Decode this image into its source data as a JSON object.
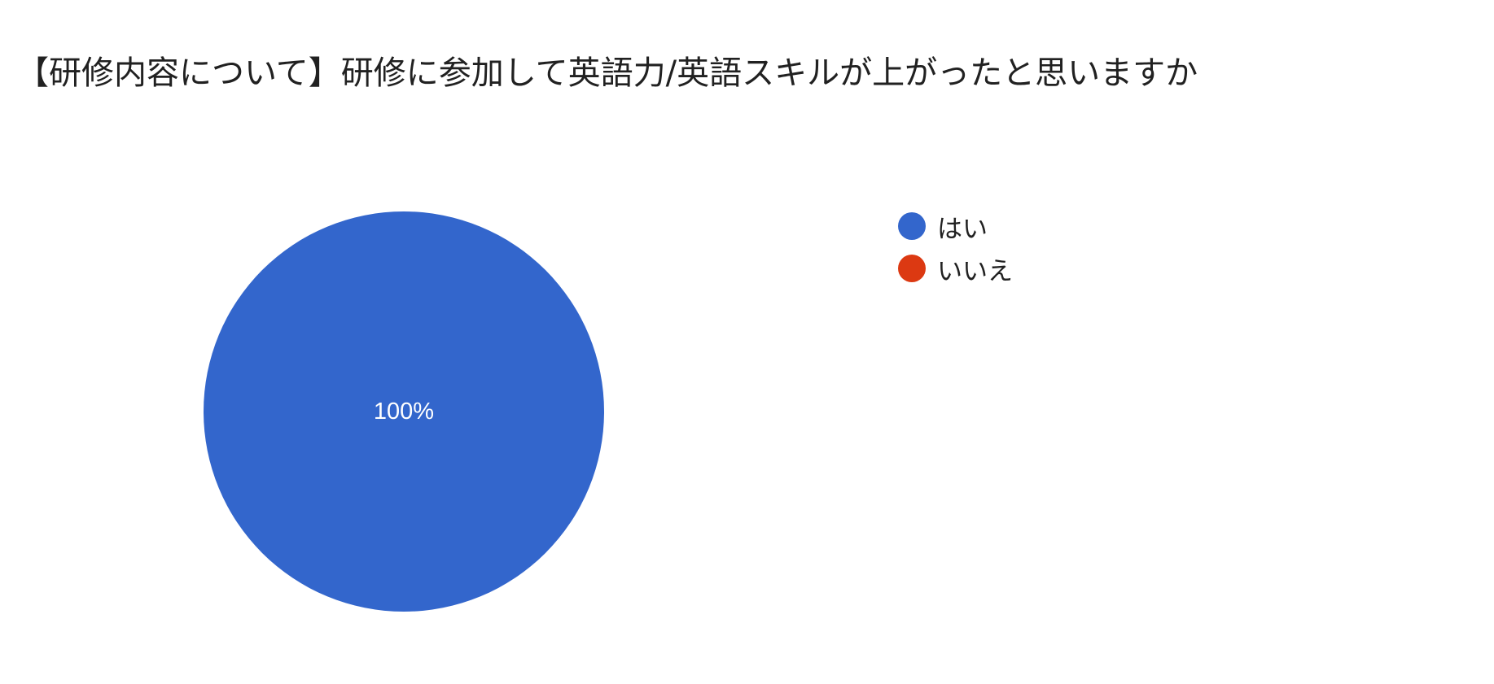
{
  "chart_data": {
    "type": "pie",
    "title": "【研修内容について】研修に参加して英語力/英語スキルが上がったと思いますか",
    "categories": [
      "はい",
      "いいえ"
    ],
    "values": [
      100,
      0
    ],
    "unit": "%",
    "data_labels": [
      "100%",
      ""
    ],
    "colors": [
      "#3366cc",
      "#dc3912"
    ],
    "legend_position": "right",
    "label_color": "#ffffff"
  }
}
